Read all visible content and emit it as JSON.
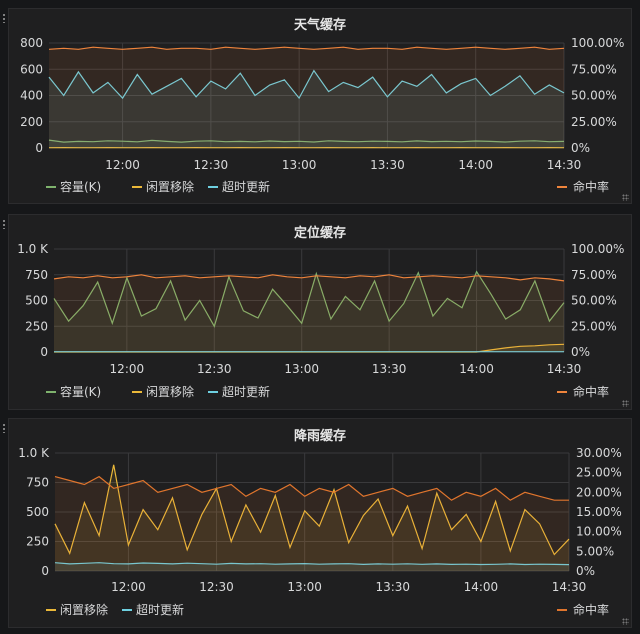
{
  "colors": {
    "green": "#7eb26d",
    "yellow": "#eab839",
    "cyan": "#6ed0e0",
    "orange": "#ef843c",
    "darkorange": "#e0752d"
  },
  "panels": [
    {
      "title": "天气缓存",
      "chart_data": {
        "type": "line",
        "x": [
          "11:35",
          "11:40",
          "11:45",
          "11:50",
          "11:55",
          "12:00",
          "12:05",
          "12:10",
          "12:15",
          "12:20",
          "12:25",
          "12:30",
          "12:35",
          "12:40",
          "12:45",
          "12:50",
          "12:55",
          "13:00",
          "13:05",
          "13:10",
          "13:15",
          "13:20",
          "13:25",
          "13:30",
          "13:35",
          "13:40",
          "13:45",
          "13:50",
          "13:55",
          "14:00",
          "14:05",
          "14:10",
          "14:15",
          "14:20",
          "14:25",
          "14:30"
        ],
        "xticks": [
          "12:00",
          "12:30",
          "13:00",
          "13:30",
          "14:00",
          "14:30"
        ],
        "yleft": {
          "ticks": [
            "0",
            "200",
            "400",
            "600",
            "800"
          ],
          "ylim": [
            0,
            800
          ]
        },
        "yright": {
          "ticks": [
            "0%",
            "25.00%",
            "50.00%",
            "75.00%",
            "100.00%"
          ],
          "ylim": [
            0,
            100
          ]
        },
        "series": [
          {
            "name": "容量(K)",
            "color": "#7eb26d",
            "axis": "left",
            "values": [
              60,
              45,
              50,
              48,
              55,
              52,
              47,
              58,
              50,
              45,
              52,
              55,
              48,
              50,
              47,
              53,
              49,
              51,
              46,
              55,
              50,
              48,
              52,
              50,
              47,
              54,
              49,
              51,
              48,
              53,
              50,
              46,
              52,
              55,
              48,
              50
            ]
          },
          {
            "name": "闲置移除",
            "color": "#eab839",
            "axis": "left",
            "values": [
              2,
              3,
              2,
              2,
              3,
              2,
              2,
              3,
              2,
              2,
              3,
              2,
              2,
              3,
              2,
              2,
              3,
              2,
              2,
              3,
              2,
              2,
              3,
              2,
              2,
              3,
              2,
              2,
              3,
              2,
              2,
              3,
              2,
              2,
              3,
              2
            ]
          },
          {
            "name": "超时更新",
            "color": "#6ed0e0",
            "axis": "left",
            "values": [
              540,
              400,
              580,
              420,
              500,
              380,
              560,
              410,
              470,
              530,
              390,
              510,
              450,
              570,
              400,
              480,
              520,
              380,
              590,
              430,
              500,
              460,
              540,
              390,
              510,
              470,
              560,
              420,
              490,
              530,
              400,
              470,
              550,
              410,
              480,
              420
            ]
          },
          {
            "name": "命中率",
            "color": "#ef843c",
            "axis": "right",
            "values": [
              94,
              95,
              94,
              96,
              95,
              94,
              95,
              96,
              94,
              95,
              95,
              94,
              96,
              95,
              94,
              95,
              96,
              95,
              94,
              95,
              96,
              94,
              95,
              95,
              94,
              96,
              95,
              94,
              95,
              96,
              95,
              94,
              95,
              96,
              94,
              95
            ]
          }
        ],
        "legend_left": [
          "容量(K)",
          "闲置移除",
          "超时更新"
        ],
        "legend_right": [
          "命中率"
        ]
      }
    },
    {
      "title": "定位缓存",
      "chart_data": {
        "type": "line",
        "x": [
          "11:35",
          "11:40",
          "11:45",
          "11:50",
          "11:55",
          "12:00",
          "12:05",
          "12:10",
          "12:15",
          "12:20",
          "12:25",
          "12:30",
          "12:35",
          "12:40",
          "12:45",
          "12:50",
          "12:55",
          "13:00",
          "13:05",
          "13:10",
          "13:15",
          "13:20",
          "13:25",
          "13:30",
          "13:35",
          "13:40",
          "13:45",
          "13:50",
          "13:55",
          "14:00",
          "14:05",
          "14:10",
          "14:15",
          "14:20",
          "14:25",
          "14:30"
        ],
        "xticks": [
          "12:00",
          "12:30",
          "13:00",
          "13:30",
          "14:00",
          "14:30"
        ],
        "yleft": {
          "ticks": [
            "0",
            "250",
            "500",
            "750",
            "1.0 K"
          ],
          "ylim": [
            0,
            1000
          ]
        },
        "yright": {
          "ticks": [
            "0%",
            "25.00%",
            "50.00%",
            "75.00%",
            "100.00%"
          ],
          "ylim": [
            0,
            100
          ]
        },
        "series": [
          {
            "name": "容量(K)",
            "color": "#7eb26d",
            "axis": "left",
            "values": [
              520,
              300,
              450,
              680,
              280,
              720,
              350,
              420,
              690,
              310,
              500,
              250,
              730,
              400,
              330,
              610,
              450,
              280,
              760,
              320,
              540,
              410,
              690,
              300,
              470,
              770,
              350,
              520,
              430,
              780,
              560,
              320,
              410,
              690,
              300,
              480
            ]
          },
          {
            "name": "闲置移除",
            "color": "#eab839",
            "axis": "left",
            "values": [
              0,
              0,
              0,
              0,
              0,
              0,
              0,
              0,
              0,
              0,
              0,
              0,
              0,
              0,
              0,
              0,
              0,
              0,
              0,
              0,
              0,
              0,
              0,
              0,
              0,
              0,
              0,
              0,
              0,
              0,
              20,
              40,
              55,
              60,
              70,
              75
            ]
          },
          {
            "name": "超时更新",
            "color": "#6ed0e0",
            "axis": "left",
            "values": [
              3,
              3,
              3,
              3,
              3,
              3,
              3,
              3,
              3,
              3,
              3,
              3,
              3,
              3,
              3,
              3,
              3,
              3,
              3,
              3,
              3,
              3,
              3,
              3,
              3,
              3,
              3,
              3,
              3,
              3,
              3,
              3,
              3,
              3,
              3,
              3
            ]
          },
          {
            "name": "命中率",
            "color": "#ef843c",
            "axis": "right",
            "values": [
              71,
              73,
              72,
              74,
              72,
              73,
              75,
              72,
              73,
              74,
              72,
              73,
              74,
              73,
              72,
              75,
              73,
              72,
              74,
              73,
              72,
              74,
              73,
              75,
              72,
              73,
              74,
              73,
              72,
              74,
              73,
              72,
              70,
              72,
              71,
              69
            ]
          }
        ],
        "legend_left": [
          "容量(K)",
          "闲置移除",
          "超时更新"
        ],
        "legend_right": [
          "命中率"
        ]
      }
    },
    {
      "title": "降雨缓存",
      "chart_data": {
        "type": "line",
        "x": [
          "11:35",
          "11:40",
          "11:45",
          "11:50",
          "11:55",
          "12:00",
          "12:05",
          "12:10",
          "12:15",
          "12:20",
          "12:25",
          "12:30",
          "12:35",
          "12:40",
          "12:45",
          "12:50",
          "12:55",
          "13:00",
          "13:05",
          "13:10",
          "13:15",
          "13:20",
          "13:25",
          "13:30",
          "13:35",
          "13:40",
          "13:45",
          "13:50",
          "13:55",
          "14:00",
          "14:05",
          "14:10",
          "14:15",
          "14:20",
          "14:25",
          "14:30"
        ],
        "xticks": [
          "12:00",
          "12:30",
          "13:00",
          "13:30",
          "14:00",
          "14:30"
        ],
        "yleft": {
          "ticks": [
            "0",
            "250",
            "500",
            "750",
            "1.0 K"
          ],
          "ylim": [
            0,
            1000
          ]
        },
        "yright": {
          "ticks": [
            "0%",
            "5.00%",
            "10.00%",
            "15.00%",
            "20.00%",
            "25.00%",
            "30.00%"
          ],
          "ylim": [
            0,
            30
          ]
        },
        "series": [
          {
            "name": "闲置移除",
            "color": "#eab839",
            "axis": "left",
            "values": [
              400,
              150,
              580,
              300,
              900,
              220,
              520,
              350,
              620,
              180,
              480,
              700,
              250,
              560,
              330,
              640,
              200,
              510,
              380,
              690,
              240,
              470,
              610,
              300,
              550,
              190,
              660,
              350,
              480,
              250,
              590,
              170,
              520,
              400,
              140,
              270
            ]
          },
          {
            "name": "超时更新",
            "color": "#6ed0e0",
            "axis": "left",
            "values": [
              70,
              60,
              65,
              70,
              62,
              60,
              68,
              64,
              60,
              66,
              62,
              58,
              64,
              60,
              62,
              58,
              60,
              63,
              58,
              60,
              62,
              56,
              60,
              58,
              61,
              57,
              60,
              56,
              58,
              55,
              57,
              60,
              55,
              58,
              56,
              54
            ]
          },
          {
            "name": "命中率",
            "color": "#e0752d",
            "axis": "right",
            "values": [
              24,
              23,
              22,
              24,
              21,
              22,
              23,
              20,
              21,
              22,
              20,
              21,
              22,
              19,
              21,
              20,
              22,
              19,
              21,
              20,
              22,
              19,
              20,
              21,
              19,
              20,
              21,
              18,
              20,
              19,
              21,
              18,
              20,
              19,
              18,
              18
            ]
          }
        ],
        "legend_left": [
          "闲置移除",
          "超时更新"
        ],
        "legend_right": [
          "命中率"
        ]
      }
    }
  ]
}
